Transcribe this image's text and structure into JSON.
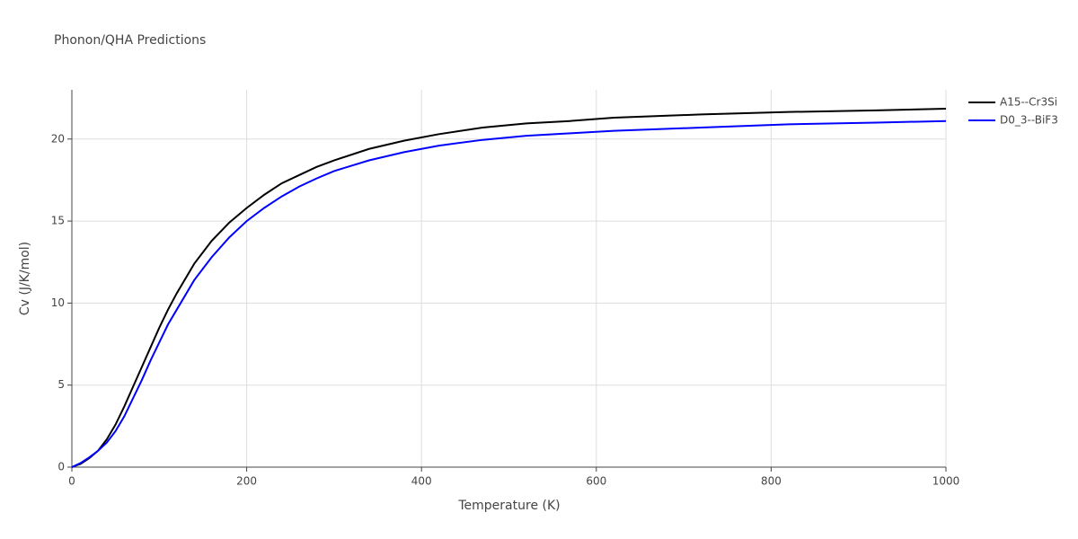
{
  "chart_data": {
    "type": "line",
    "title": "Phonon/QHA Predictions",
    "x_label": "Temperature (K)",
    "y_label": "Cv (J/K/mol)",
    "x": [
      0,
      10,
      20,
      30,
      40,
      50,
      60,
      70,
      80,
      90,
      100,
      110,
      120,
      140,
      160,
      180,
      200,
      220,
      240,
      260,
      280,
      300,
      340,
      380,
      420,
      470,
      520,
      570,
      620,
      720,
      820,
      920,
      1000
    ],
    "series": [
      {
        "name": "A15--Cr3Si",
        "color": "#000000",
        "values": [
          0,
          0.2,
          0.55,
          1.0,
          1.7,
          2.6,
          3.7,
          4.9,
          6.1,
          7.3,
          8.5,
          9.6,
          10.6,
          12.4,
          13.8,
          14.9,
          15.8,
          16.6,
          17.3,
          17.8,
          18.3,
          18.7,
          19.4,
          19.9,
          20.3,
          20.7,
          20.95,
          21.1,
          21.3,
          21.5,
          21.65,
          21.75,
          21.85
        ]
      },
      {
        "name": "D0_3--BiF3",
        "color": "#0000ff",
        "values": [
          0,
          0.25,
          0.6,
          1.0,
          1.5,
          2.2,
          3.1,
          4.2,
          5.3,
          6.5,
          7.6,
          8.7,
          9.6,
          11.4,
          12.8,
          14.0,
          15.0,
          15.8,
          16.5,
          17.1,
          17.6,
          18.05,
          18.7,
          19.2,
          19.6,
          19.95,
          20.2,
          20.35,
          20.5,
          20.7,
          20.9,
          21.0,
          21.1
        ]
      }
    ],
    "xlim": [
      0,
      1000
    ],
    "xticks": [
      0,
      200,
      400,
      600,
      800,
      1000
    ],
    "ylim": [
      0,
      23
    ],
    "yticks": [
      0,
      5,
      10,
      15,
      20
    ],
    "grid": true,
    "legend": "right"
  }
}
